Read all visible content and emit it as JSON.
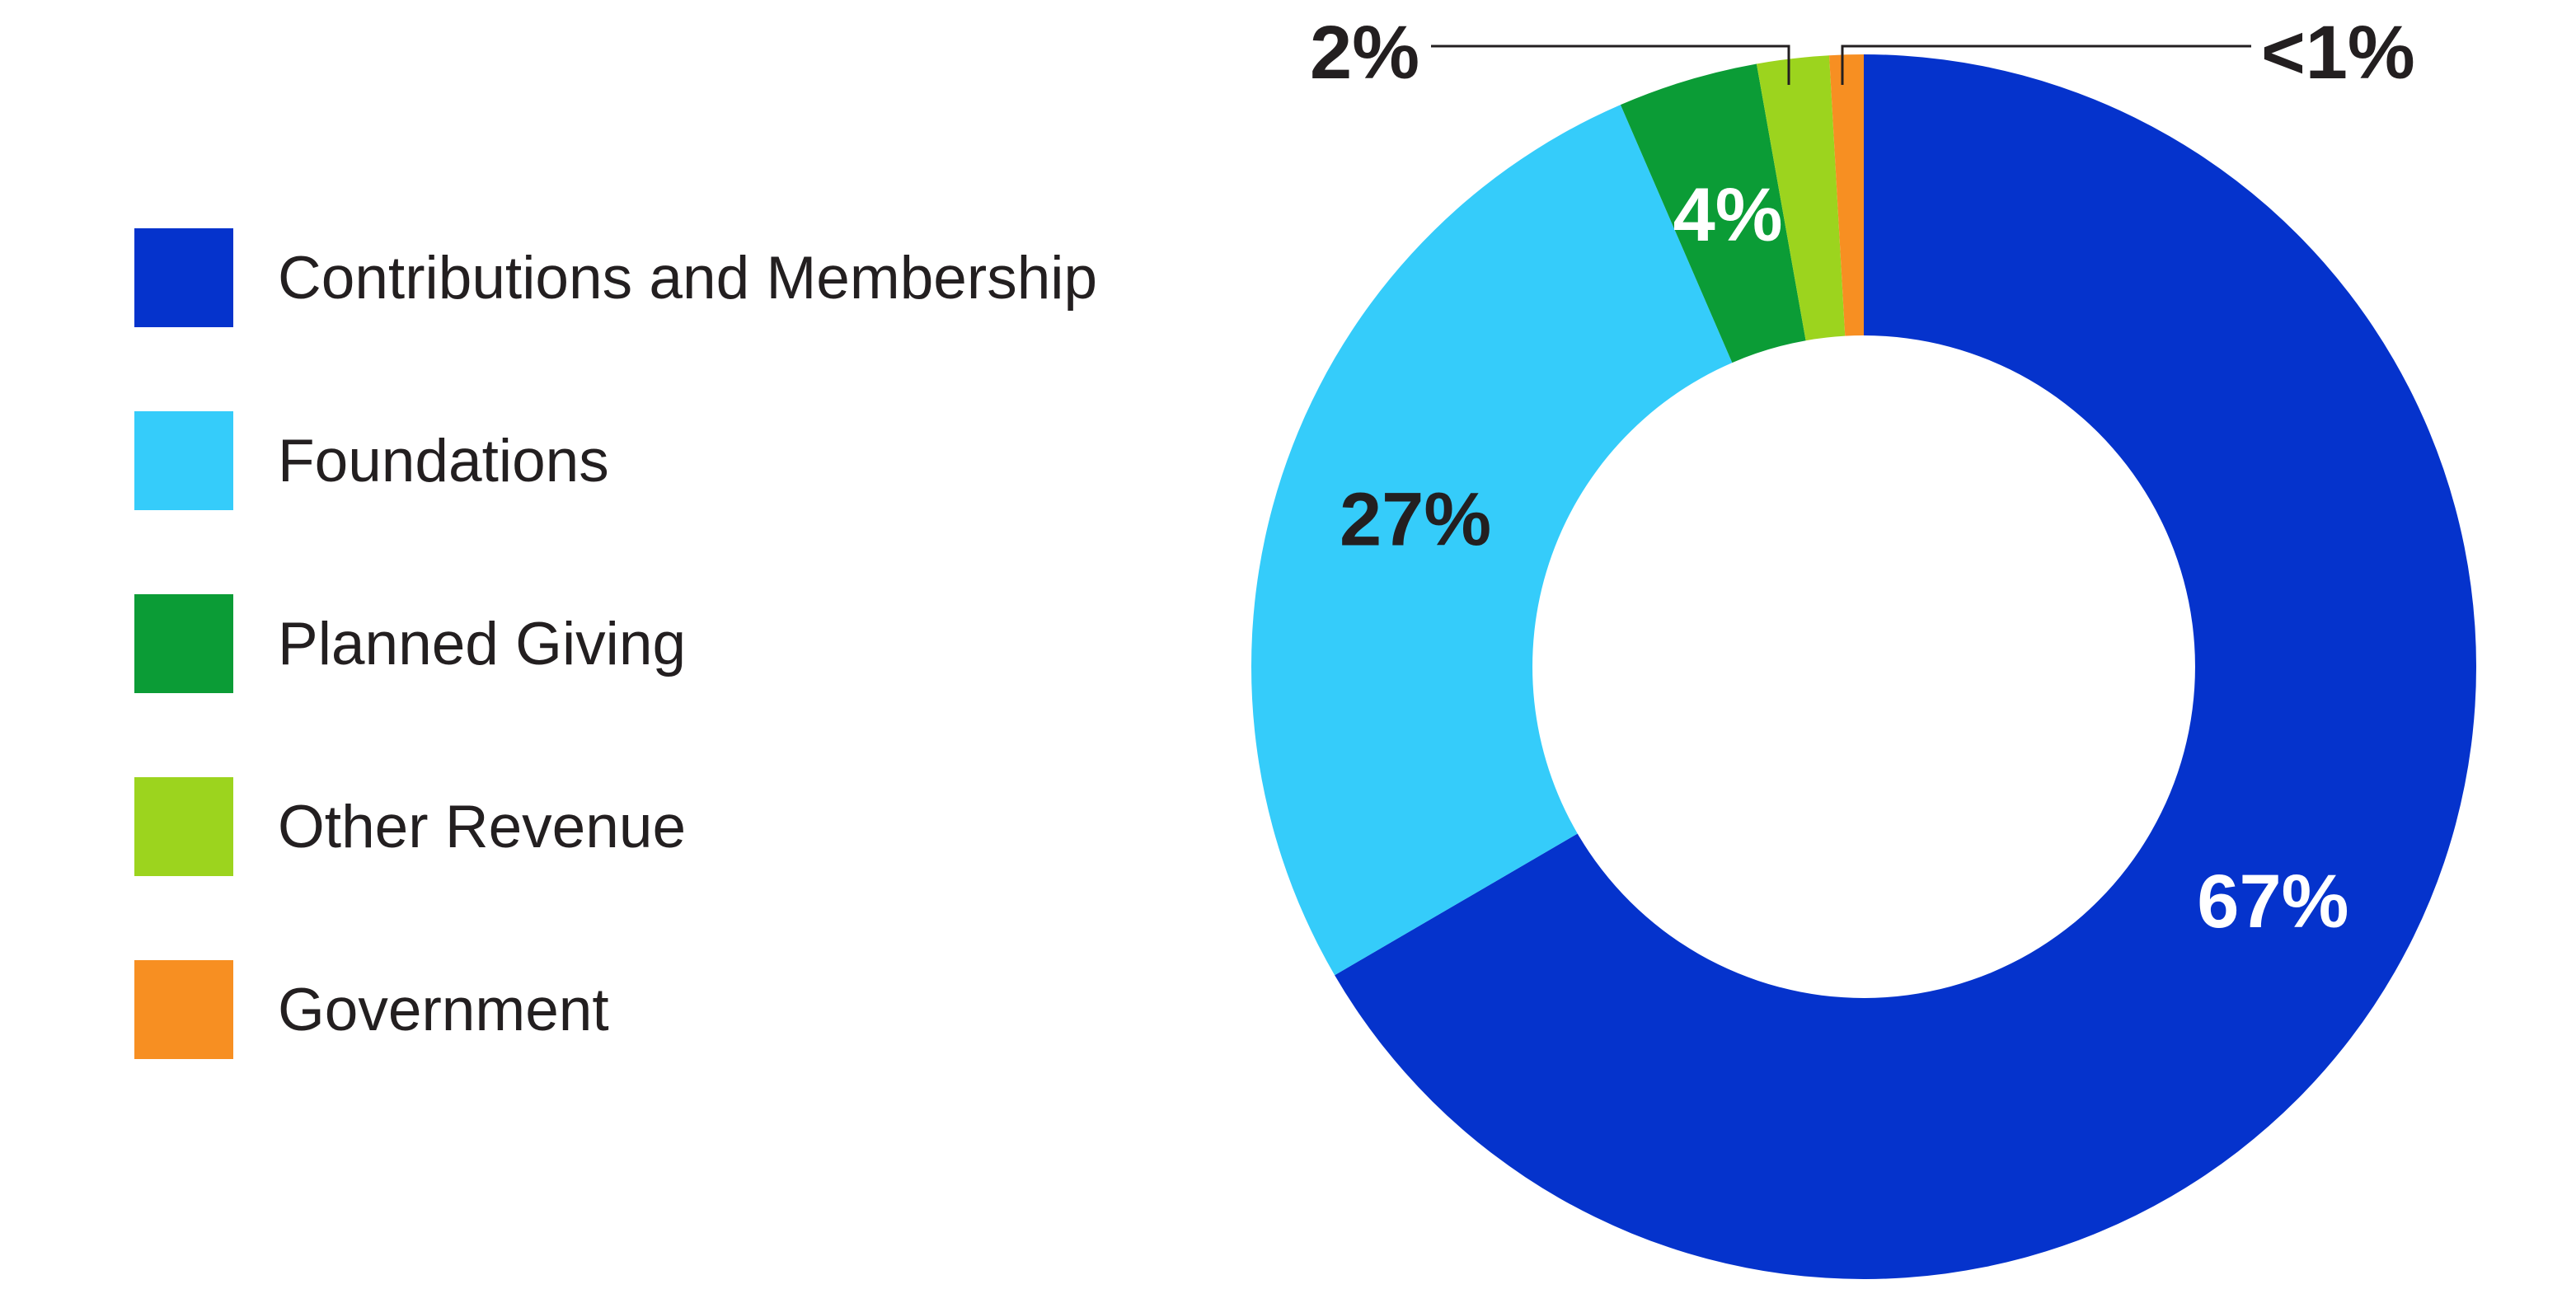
{
  "chart_data": {
    "type": "donut",
    "legend_position": "left",
    "background_color": "#ffffff",
    "text_color": "#231f20",
    "start_angle_deg": 0,
    "direction": "clockwise",
    "inner_radius_ratio": 0.541,
    "slices": [
      {
        "label": "Contributions and Membership",
        "display_pct": "67%",
        "value": 66.6,
        "color": "#0533CC",
        "pct_label_color": "#FFFFFF",
        "pct_label_placement": "inside"
      },
      {
        "label": "Foundations",
        "display_pct": "27%",
        "value": 26.9,
        "color": "#35CCFA",
        "pct_label_color": "#231F20",
        "pct_label_placement": "inside"
      },
      {
        "label": "Planned Giving",
        "display_pct": "4%",
        "value": 3.7,
        "color": "#0B9C36",
        "pct_label_color": "#FFFFFF",
        "pct_label_placement": "inside"
      },
      {
        "label": "Other Revenue",
        "display_pct": "2%",
        "value": 1.9,
        "color": "#9CD41E",
        "pct_label_color": "#231F20",
        "pct_label_placement": "callout-left"
      },
      {
        "label": "Government",
        "display_pct": "<1%",
        "value": 0.9,
        "color": "#F78F22",
        "pct_label_color": "#231F20",
        "pct_label_placement": "callout-right"
      }
    ]
  }
}
